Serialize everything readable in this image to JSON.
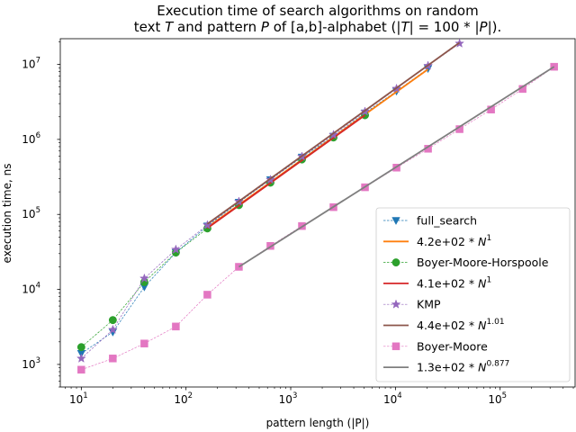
{
  "chart_data": {
    "type": "line",
    "title_line1": "Execution time of search algorithms on random",
    "title_line2": "text T and pattern P of [a,b]-alphabet (|T| = 100 * |P|).",
    "xlabel": "pattern length (|P|)",
    "ylabel": "execution time, ns",
    "xscale": "log",
    "yscale": "log",
    "xlim": [
      6.3,
      520000
    ],
    "ylim": [
      500,
      22000000
    ],
    "x_ticks": [
      {
        "value": 10,
        "base": "10",
        "exp": "1"
      },
      {
        "value": 100,
        "base": "10",
        "exp": "2"
      },
      {
        "value": 1000,
        "base": "10",
        "exp": "3"
      },
      {
        "value": 10000,
        "base": "10",
        "exp": "4"
      },
      {
        "value": 100000,
        "base": "10",
        "exp": "5"
      }
    ],
    "y_ticks": [
      {
        "value": 1000,
        "base": "10",
        "exp": "3"
      },
      {
        "value": 10000,
        "base": "10",
        "exp": "4"
      },
      {
        "value": 100000,
        "base": "10",
        "exp": "5"
      },
      {
        "value": 1000000,
        "base": "10",
        "exp": "6"
      },
      {
        "value": 10000000,
        "base": "10",
        "exp": "7"
      }
    ],
    "legend_position": "lower right",
    "series": [
      {
        "name": "full_search",
        "kind": "data",
        "marker": "triangle-down",
        "color": "#1f77b4",
        "x": [
          10,
          20,
          40,
          80,
          160,
          320,
          640,
          1280,
          2560,
          5120,
          10240,
          20480
        ],
        "y": [
          1400,
          2700,
          10800,
          31000,
          70000,
          145000,
          290000,
          580000,
          1100000,
          2250000,
          4400000,
          8800000
        ]
      },
      {
        "name": "4.2e+02 * N^1",
        "legend_prefix": "4.2e+02 * N",
        "legend_exp": "1",
        "kind": "fit",
        "color": "#ff7f0e",
        "x": [
          160,
          20480
        ],
        "y": [
          67200,
          8601600
        ]
      },
      {
        "name": "Boyer-Moore-Horspoole",
        "kind": "data",
        "marker": "circle",
        "color": "#2ca02c",
        "x": [
          10,
          20,
          40,
          80,
          160,
          320,
          640,
          1280,
          2560,
          5120
        ],
        "y": [
          1700,
          3900,
          12500,
          31000,
          65000,
          133000,
          265000,
          540000,
          1060000,
          2100000
        ]
      },
      {
        "name": "4.1e+02 * N^1",
        "legend_prefix": "4.1e+02 * N",
        "legend_exp": "1",
        "kind": "fit",
        "color": "#d62728",
        "x": [
          160,
          5120
        ],
        "y": [
          65600,
          2099200
        ]
      },
      {
        "name": "KMP",
        "kind": "data",
        "marker": "star",
        "color": "#9467bd",
        "x": [
          10,
          20,
          40,
          80,
          160,
          320,
          640,
          1280,
          2560,
          5120,
          10240,
          20480,
          40960
        ],
        "y": [
          1200,
          2900,
          14000,
          34000,
          72000,
          148000,
          290000,
          590000,
          1150000,
          2350000,
          4750000,
          9600000,
          19000000
        ]
      },
      {
        "name": "4.4e+02 * N^1.01",
        "legend_prefix": "4.4e+02 * N",
        "legend_exp": "1.01",
        "kind": "fit",
        "color": "#8c564b",
        "x": [
          160,
          40960
        ],
        "y": [
          74700,
          19500000
        ]
      },
      {
        "name": "Boyer-Moore",
        "kind": "data",
        "marker": "square",
        "color": "#e377c2",
        "x": [
          10,
          20,
          40,
          80,
          160,
          320,
          640,
          1280,
          2560,
          5120,
          10240,
          20480,
          40960,
          81920,
          163840,
          327680
        ],
        "y": [
          850,
          1200,
          1900,
          3200,
          8500,
          20000,
          38000,
          70000,
          125000,
          230000,
          420000,
          750000,
          1370000,
          2500000,
          4700000,
          9300000
        ]
      },
      {
        "name": "1.3e+02 * N^0.877",
        "legend_prefix": "1.3e+02 * N",
        "legend_exp": "0.877",
        "kind": "fit",
        "color": "#7f7f7f",
        "x": [
          320,
          327680
        ],
        "y": [
          20000,
          9300000
        ]
      }
    ]
  }
}
